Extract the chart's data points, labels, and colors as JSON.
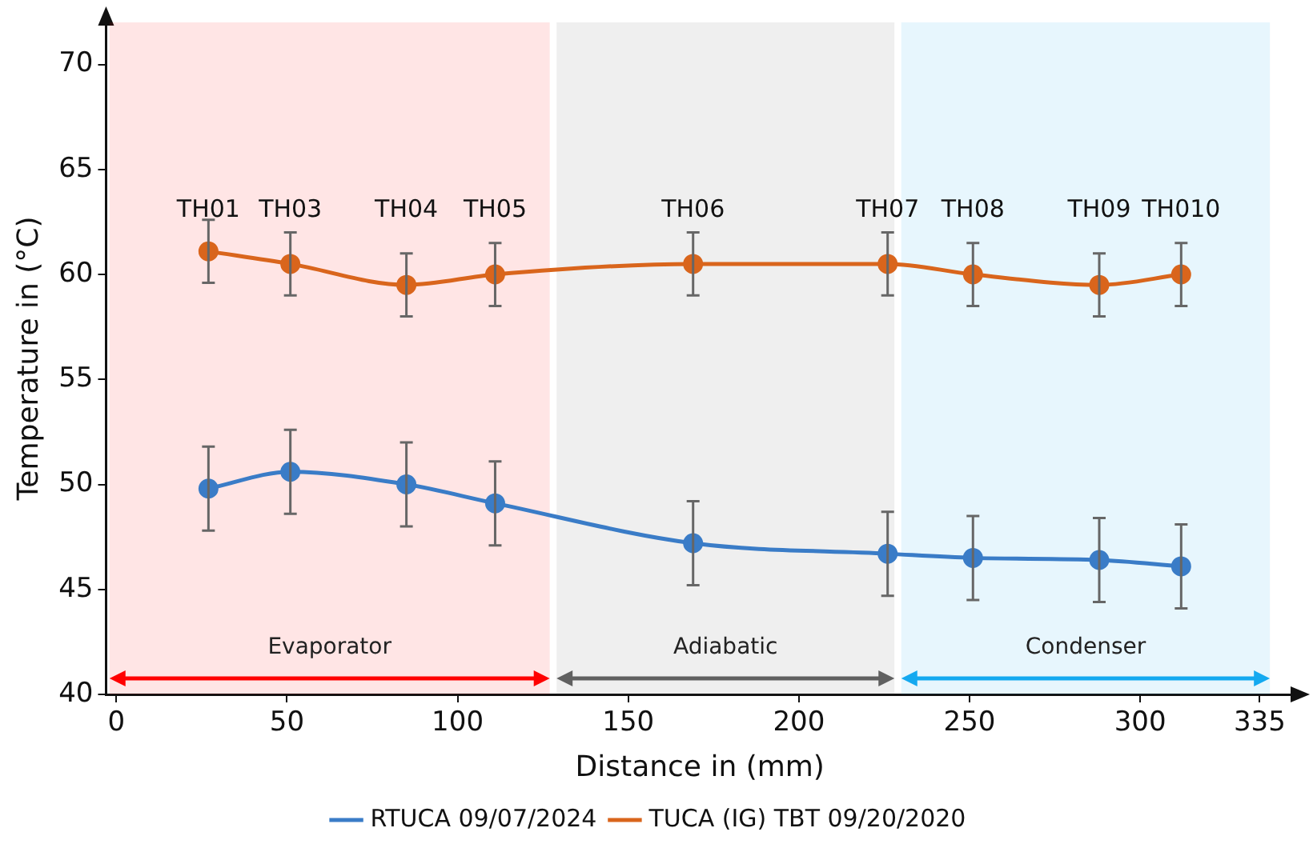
{
  "chart_data": {
    "type": "line",
    "xlabel": "Distance in (mm)",
    "ylabel": "Temperature in (°C)",
    "x": [
      27,
      51,
      85,
      111,
      169,
      226,
      251,
      288,
      312
    ],
    "series": [
      {
        "name": "RTUCA 09/07/2024",
        "color": "#3a7cc7",
        "values": [
          49.8,
          50.6,
          50.0,
          49.1,
          47.2,
          46.7,
          46.5,
          46.4,
          46.1
        ],
        "errors": [
          2,
          2,
          2,
          2,
          2,
          2,
          2,
          2,
          2
        ]
      },
      {
        "name": "TUCA (IG) TBT 09/20/2020",
        "color": "#d9651c",
        "values": [
          61.1,
          60.5,
          59.5,
          60.0,
          60.5,
          60.5,
          60.0,
          59.5,
          60.0
        ],
        "errors": [
          1.5,
          1.5,
          1.5,
          1.5,
          1.5,
          1.5,
          1.5,
          1.5,
          1.5
        ]
      }
    ],
    "xlim": [
      -3,
      345
    ],
    "xticks": [
      0,
      50,
      100,
      150,
      200,
      250,
      300,
      335
    ],
    "ylim": [
      40,
      72
    ],
    "yticks": [
      40,
      45,
      50,
      55,
      60,
      65,
      70
    ],
    "grid": false,
    "legend": "bottom",
    "marker": "circle",
    "line_style": "solid",
    "annotations": [
      "TH01",
      "TH03",
      "TH04",
      "TH05",
      "TH06",
      "TH07",
      "TH08",
      "TH09",
      "TH010"
    ],
    "bands": [
      {
        "axis": "x",
        "from": -2,
        "to": 127,
        "label": "Evaporator",
        "color": "#ff0000"
      },
      {
        "axis": "x",
        "from": 129,
        "to": 228,
        "label": "Adiabatic",
        "color": "#606060"
      },
      {
        "axis": "x",
        "from": 230,
        "to": 338,
        "label": "Condenser",
        "color": "#14a9f0"
      }
    ]
  }
}
